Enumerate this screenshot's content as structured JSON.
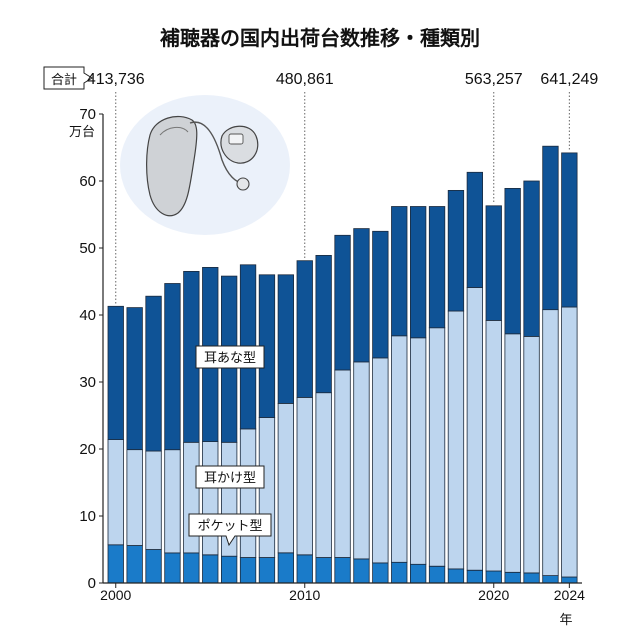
{
  "chart_data": {
    "type": "bar",
    "title": "補聴器の国内出荷台数推移・種類別",
    "ylabel": "万台",
    "xlabel": "年",
    "ylim": [
      0,
      70
    ],
    "yticks": [
      "0",
      "10",
      "20",
      "30",
      "40",
      "50",
      "60",
      "70"
    ],
    "xtick_labels": [
      "2000",
      "2010",
      "2020",
      "2024"
    ],
    "categories": [
      2000,
      2001,
      2002,
      2003,
      2004,
      2005,
      2006,
      2007,
      2008,
      2009,
      2010,
      2011,
      2012,
      2013,
      2014,
      2015,
      2016,
      2017,
      2018,
      2019,
      2020,
      2021,
      2022,
      2023,
      2024
    ],
    "stacked": true,
    "series": [
      {
        "name": "ポケット型",
        "color": "#1a7bc9",
        "values": [
          5.7,
          5.6,
          5.0,
          4.5,
          4.5,
          4.2,
          4.0,
          3.8,
          3.8,
          4.5,
          4.2,
          3.8,
          3.8,
          3.6,
          3.0,
          3.1,
          2.8,
          2.5,
          2.1,
          1.9,
          1.8,
          1.6,
          1.5,
          1.1,
          0.9
        ]
      },
      {
        "name": "耳かけ型",
        "color": "#bdd5ee",
        "values": [
          15.7,
          14.3,
          14.7,
          15.4,
          16.5,
          16.9,
          17.0,
          19.2,
          20.9,
          22.3,
          23.5,
          24.6,
          28.0,
          29.4,
          30.6,
          33.8,
          33.8,
          35.6,
          38.5,
          42.2,
          37.4,
          35.6,
          35.3,
          39.7,
          40.3
        ]
      },
      {
        "name": "耳あな型",
        "color": "#0f5396",
        "values": [
          19.9,
          21.2,
          23.1,
          24.8,
          25.5,
          26.0,
          24.8,
          24.5,
          21.3,
          19.2,
          20.4,
          20.5,
          20.1,
          19.9,
          18.9,
          19.3,
          19.6,
          18.1,
          18.0,
          17.2,
          17.1,
          21.7,
          23.2,
          24.4,
          23.0
        ]
      }
    ],
    "totals": [
      {
        "year": 2000,
        "label": "413,736"
      },
      {
        "year": 2010,
        "label": "480,861"
      },
      {
        "year": 2020,
        "label": "563,257"
      },
      {
        "year": 2024,
        "label": "641,249"
      }
    ],
    "totals_tag": "合計",
    "grid": false,
    "legend": "inline labels"
  }
}
